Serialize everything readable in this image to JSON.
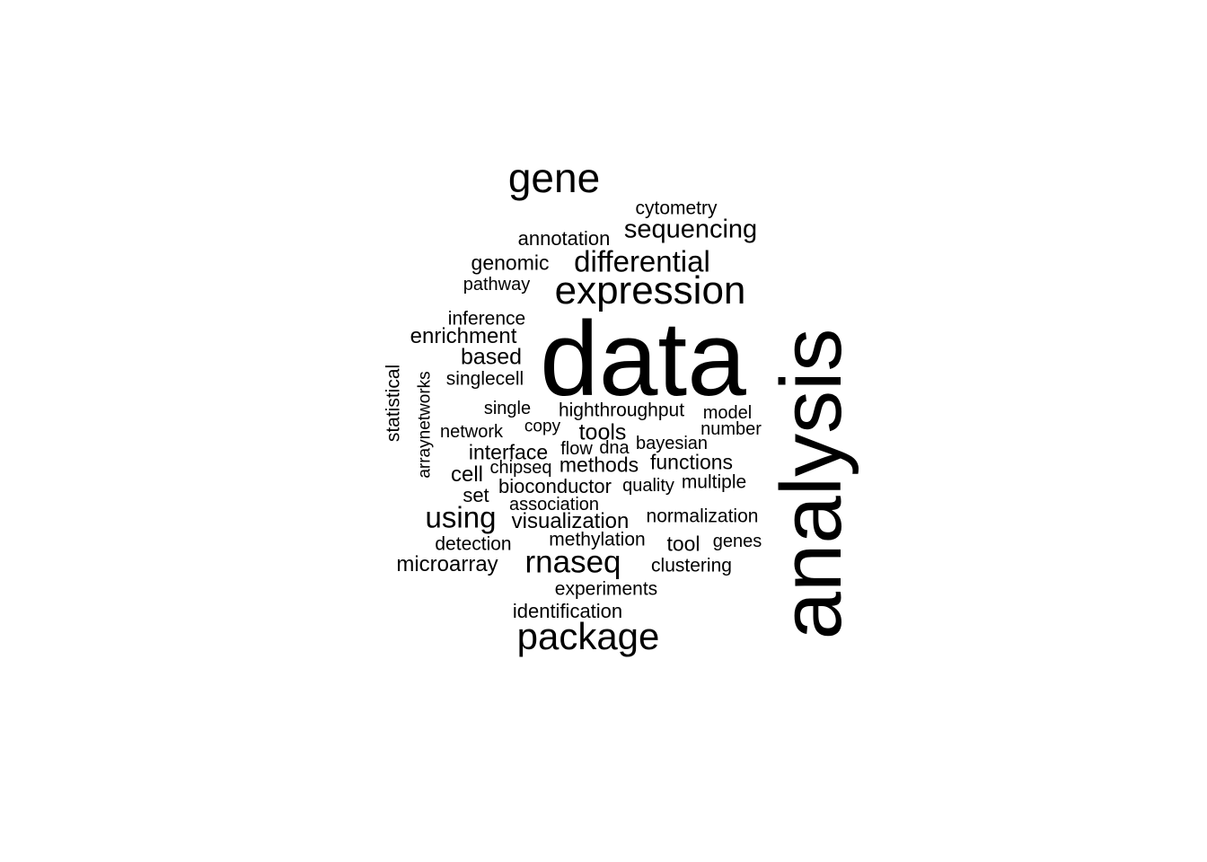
{
  "words": [
    {
      "text": "data",
      "vertical": false
    },
    {
      "text": "analysis",
      "vertical": true
    },
    {
      "text": "gene",
      "vertical": false
    },
    {
      "text": "expression",
      "vertical": false
    },
    {
      "text": "package",
      "vertical": false
    },
    {
      "text": "differential",
      "vertical": false
    },
    {
      "text": "sequencing",
      "vertical": false
    },
    {
      "text": "rnaseq",
      "vertical": false
    },
    {
      "text": "using",
      "vertical": false
    },
    {
      "text": "cytometry",
      "vertical": false
    },
    {
      "text": "annotation",
      "vertical": false
    },
    {
      "text": "genomic",
      "vertical": false
    },
    {
      "text": "pathway",
      "vertical": false
    },
    {
      "text": "inference",
      "vertical": false
    },
    {
      "text": "enrichment",
      "vertical": false
    },
    {
      "text": "based",
      "vertical": false
    },
    {
      "text": "singlecell",
      "vertical": false
    },
    {
      "text": "statistical",
      "vertical": true
    },
    {
      "text": "arraynetworks",
      "vertical": true
    },
    {
      "text": "single",
      "vertical": false
    },
    {
      "text": "highthroughput",
      "vertical": false
    },
    {
      "text": "model",
      "vertical": false
    },
    {
      "text": "copy",
      "vertical": false
    },
    {
      "text": "network",
      "vertical": false
    },
    {
      "text": "tools",
      "vertical": false
    },
    {
      "text": "number",
      "vertical": false
    },
    {
      "text": "interface",
      "vertical": false
    },
    {
      "text": "flow",
      "vertical": false
    },
    {
      "text": "dna",
      "vertical": false
    },
    {
      "text": "bayesian",
      "vertical": false
    },
    {
      "text": "cell",
      "vertical": false
    },
    {
      "text": "chipseq",
      "vertical": false
    },
    {
      "text": "methods",
      "vertical": false
    },
    {
      "text": "functions",
      "vertical": false
    },
    {
      "text": "bioconductor",
      "vertical": false
    },
    {
      "text": "quality",
      "vertical": false
    },
    {
      "text": "multiple",
      "vertical": false
    },
    {
      "text": "set",
      "vertical": false
    },
    {
      "text": "association",
      "vertical": false
    },
    {
      "text": "visualization",
      "vertical": false
    },
    {
      "text": "normalization",
      "vertical": false
    },
    {
      "text": "detection",
      "vertical": false
    },
    {
      "text": "methylation",
      "vertical": false
    },
    {
      "text": "tool",
      "vertical": false
    },
    {
      "text": "genes",
      "vertical": false
    },
    {
      "text": "microarray",
      "vertical": false
    },
    {
      "text": "clustering",
      "vertical": false
    },
    {
      "text": "experiments",
      "vertical": false
    },
    {
      "text": "identification",
      "vertical": false
    }
  ]
}
